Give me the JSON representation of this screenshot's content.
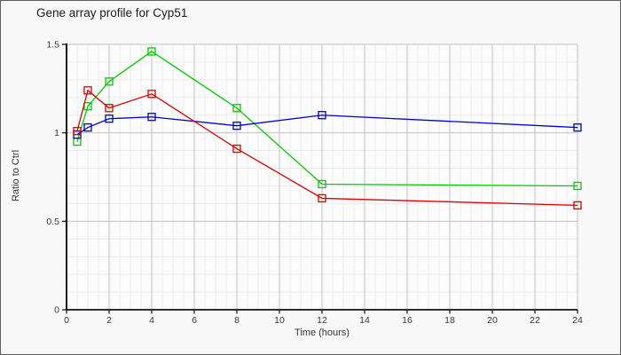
{
  "window": {
    "background": "#f8f8f8",
    "border_color": "#5e5e5e"
  },
  "chart_data": {
    "type": "line",
    "title": "Gene array profile for Cyp51",
    "xlabel": "Time (hours)",
    "ylabel": "Ratio to Ctrl",
    "xlim": [
      0,
      24
    ],
    "ylim": [
      0,
      1.5
    ],
    "x_ticks": [
      0,
      2,
      4,
      6,
      8,
      10,
      12,
      14,
      16,
      18,
      20,
      22,
      24
    ],
    "y_ticks": [
      0,
      0.5,
      1,
      1.5
    ],
    "x_minor_step": 0.5,
    "y_minor_step": 0.1,
    "grid": "major+minor",
    "legend": "none",
    "marker": "open-square",
    "x": [
      0.5,
      1,
      2,
      4,
      8,
      12,
      24
    ],
    "series": [
      {
        "name": "green-series",
        "color": "#00cc00",
        "values": [
          0.95,
          1.15,
          1.29,
          1.46,
          1.14,
          0.71,
          0.7
        ]
      },
      {
        "name": "blue-series",
        "color": "#0000cc",
        "values": [
          0.99,
          1.03,
          1.08,
          1.09,
          1.04,
          1.1,
          1.03
        ]
      },
      {
        "name": "red-series",
        "color": "#dd0000",
        "values": [
          1.01,
          1.24,
          1.14,
          1.22,
          0.91,
          0.63,
          0.59
        ]
      }
    ],
    "colors": {
      "plot_background": "#fcfcfc",
      "minor_grid": "#ececec",
      "major_grid": "#c2c2c2",
      "axis": "#111111",
      "tick_label": "#3a3a3a"
    }
  }
}
